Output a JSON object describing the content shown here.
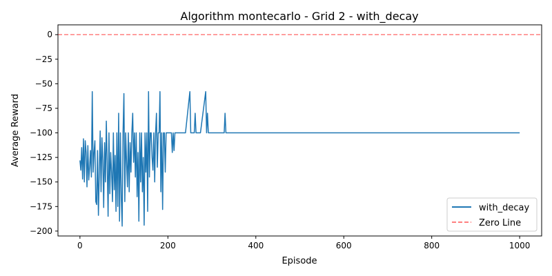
{
  "chart_data": {
    "type": "line",
    "title": "Algorithm montecarlo - Grid 2 - with_decay",
    "xlabel": "Episode",
    "ylabel": "Average Reward",
    "xlim": [
      -50,
      1050
    ],
    "ylim": [
      -205,
      10
    ],
    "xticks": [
      0,
      200,
      400,
      600,
      800,
      1000
    ],
    "yticks": [
      0,
      -25,
      -50,
      -75,
      -100,
      -125,
      -150,
      -175,
      -200
    ],
    "grid": false,
    "legend_position": "bottom-right",
    "series": [
      {
        "name": "with_decay",
        "color": "#1f77b4",
        "style": "solid",
        "x": [
          0,
          2,
          4,
          6,
          8,
          10,
          12,
          14,
          16,
          18,
          20,
          22,
          24,
          26,
          28,
          30,
          32,
          34,
          36,
          38,
          40,
          42,
          44,
          46,
          48,
          50,
          52,
          54,
          56,
          58,
          60,
          62,
          64,
          66,
          68,
          70,
          72,
          74,
          76,
          78,
          80,
          82,
          84,
          86,
          88,
          90,
          92,
          94,
          96,
          98,
          100,
          102,
          104,
          106,
          108,
          110,
          112,
          114,
          116,
          118,
          120,
          122,
          124,
          126,
          128,
          130,
          132,
          134,
          136,
          138,
          140,
          142,
          144,
          146,
          148,
          150,
          152,
          154,
          156,
          158,
          160,
          162,
          164,
          166,
          168,
          170,
          172,
          174,
          176,
          178,
          180,
          182,
          184,
          186,
          188,
          190,
          192,
          194,
          196,
          198,
          200,
          202,
          204,
          206,
          208,
          210,
          212,
          214,
          216,
          218,
          220,
          222,
          224,
          226,
          228,
          240,
          250,
          252,
          254,
          256,
          258,
          260,
          262,
          264,
          266,
          268,
          270,
          272,
          274,
          286,
          288,
          290,
          292,
          294,
          296,
          298,
          300,
          328,
          330,
          332,
          334,
          336,
          338,
          1000
        ],
        "y": [
          -128,
          -138,
          -115,
          -147,
          -106,
          -150,
          -108,
          -120,
          -155,
          -113,
          -148,
          -135,
          -118,
          -145,
          -58,
          -140,
          -120,
          -108,
          -170,
          -173,
          -118,
          -184,
          -140,
          -98,
          -160,
          -105,
          -128,
          -176,
          -110,
          -150,
          -88,
          -130,
          -185,
          -100,
          -162,
          -120,
          -140,
          -170,
          -100,
          -158,
          -123,
          -180,
          -100,
          -175,
          -80,
          -190,
          -100,
          -165,
          -195,
          -100,
          -60,
          -170,
          -100,
          -130,
          -155,
          -100,
          -160,
          -110,
          -140,
          -100,
          -80,
          -130,
          -100,
          -145,
          -100,
          -165,
          -120,
          -190,
          -100,
          -150,
          -100,
          -160,
          -125,
          -194,
          -100,
          -140,
          -100,
          -180,
          -58,
          -145,
          -100,
          -100,
          -125,
          -138,
          -100,
          -150,
          -100,
          -80,
          -135,
          -100,
          -100,
          -58,
          -160,
          -100,
          -178,
          -100,
          -100,
          -140,
          -100,
          -100,
          -100,
          -100,
          -100,
          -100,
          -100,
          -120,
          -100,
          -118,
          -100,
          -100,
          -100,
          -100,
          -100,
          -100,
          -100,
          -100,
          -58,
          -100,
          -100,
          -100,
          -100,
          -100,
          -80,
          -100,
          -100,
          -100,
          -100,
          -100,
          -100,
          -58,
          -100,
          -80,
          -100,
          -100,
          -100,
          -100,
          -100,
          -100,
          -80,
          -100,
          -100,
          -100,
          -100,
          -100
        ]
      },
      {
        "name": "Zero Line",
        "color": "#ff7f7f",
        "style": "dashed",
        "y_constant": 0
      }
    ]
  }
}
